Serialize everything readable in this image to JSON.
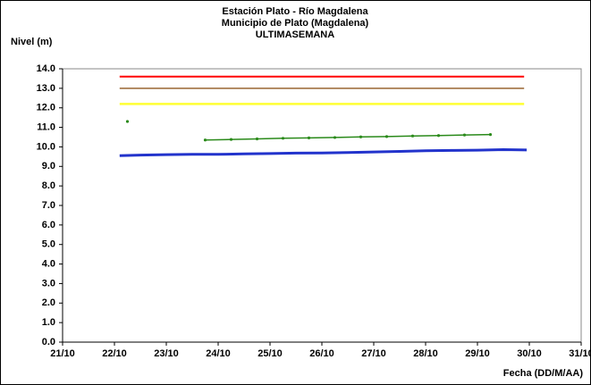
{
  "chart_data": {
    "type": "line",
    "title": [
      "Estación Plato - Río Magdalena",
      "Municipio de Plato (Magdalena)",
      "ULTIMASEMANA"
    ],
    "ylabel": "Nivel (m)",
    "xlabel": "Fecha (DD/M/AA)",
    "xlim": [
      21,
      31
    ],
    "ylim": [
      0,
      14
    ],
    "xticks": [
      {
        "value": 21,
        "label": "21/10"
      },
      {
        "value": 22,
        "label": "22/10"
      },
      {
        "value": 23,
        "label": "23/10"
      },
      {
        "value": 24,
        "label": "24/10"
      },
      {
        "value": 25,
        "label": "25/10"
      },
      {
        "value": 26,
        "label": "26/10"
      },
      {
        "value": 27,
        "label": "27/10"
      },
      {
        "value": 28,
        "label": "28/10"
      },
      {
        "value": 29,
        "label": "29/10"
      },
      {
        "value": 30,
        "label": "30/10"
      },
      {
        "value": 31,
        "label": "31/10"
      }
    ],
    "yticks": [
      {
        "value": 0,
        "label": "0.0"
      },
      {
        "value": 1,
        "label": "1.0"
      },
      {
        "value": 2,
        "label": "2.0"
      },
      {
        "value": 3,
        "label": "3.0"
      },
      {
        "value": 4,
        "label": "4.0"
      },
      {
        "value": 5,
        "label": "5.0"
      },
      {
        "value": 6,
        "label": "6.0"
      },
      {
        "value": 7,
        "label": "7.0"
      },
      {
        "value": 8,
        "label": "8.0"
      },
      {
        "value": 9,
        "label": "9.0"
      },
      {
        "value": 10,
        "label": "10.0"
      },
      {
        "value": 11,
        "label": "11.0"
      },
      {
        "value": 12,
        "label": "12.0"
      },
      {
        "value": 13,
        "label": "13.0"
      },
      {
        "value": 14,
        "label": "14.0"
      }
    ],
    "series": [
      {
        "color": "#ff0000",
        "width": 2,
        "x": [
          22.1,
          29.9
        ],
        "values": [
          13.6,
          13.6
        ]
      },
      {
        "color": "#996633",
        "width": 1.5,
        "x": [
          22.1,
          29.9
        ],
        "values": [
          13.0,
          13.0
        ]
      },
      {
        "color": "#ffff33",
        "width": 2.5,
        "x": [
          22.1,
          29.9
        ],
        "values": [
          12.2,
          12.2
        ]
      },
      {
        "color": "#2a8a1a",
        "width": 1.5,
        "markers": true,
        "x": [
          22.25,
          23.0,
          23.75,
          24.25,
          24.75,
          25.25,
          25.75,
          26.25,
          26.75,
          27.25,
          27.75,
          28.25,
          28.75,
          29.25
        ],
        "values": [
          11.3,
          null,
          10.35,
          10.38,
          10.41,
          10.44,
          10.46,
          10.48,
          10.51,
          10.53,
          10.56,
          10.58,
          10.61,
          10.63
        ]
      },
      {
        "color": "#2233cc",
        "width": 3,
        "x": [
          22.1,
          22.5,
          23,
          23.5,
          24,
          24.5,
          25,
          25.5,
          26,
          26.5,
          27,
          27.5,
          28,
          28.5,
          29,
          29.5,
          29.95
        ],
        "values": [
          9.55,
          9.58,
          9.6,
          9.62,
          9.62,
          9.64,
          9.66,
          9.68,
          9.69,
          9.71,
          9.74,
          9.77,
          9.8,
          9.82,
          9.83,
          9.86,
          9.84
        ]
      }
    ]
  }
}
